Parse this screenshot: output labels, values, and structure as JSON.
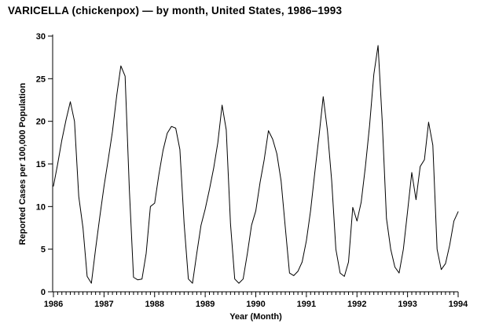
{
  "title": "VARICELLA (chickenpox) — by month, United States, 1986–1993",
  "chart_data": {
    "type": "line",
    "title": "VARICELLA (chickenpox) — by month, United States, 1986–1993",
    "xlabel": "Year (Month)",
    "ylabel": "Reported Cases per 100,000 Population",
    "ylim": [
      0,
      30
    ],
    "y_ticks": [
      0,
      5,
      10,
      15,
      20,
      25,
      30
    ],
    "x_tick_labels": [
      "1986",
      "1987",
      "1988",
      "1989",
      "1990",
      "1991",
      "1992",
      "1993",
      "1994"
    ],
    "x_minor_tick": "monthly",
    "grid": false,
    "legend": "none",
    "line_color": "#000000",
    "background_color": "#ffffff",
    "series": [
      {
        "name": "Reported varicella cases per 100,000 population",
        "monthly_values_by_year": {
          "1986": [
            12.4,
            15.0,
            17.8,
            20.2,
            22.3,
            20.0,
            11.2,
            7.5,
            1.8,
            1.0,
            5.0,
            8.8
          ],
          "1987": [
            12.4,
            15.5,
            18.8,
            23.0,
            26.5,
            25.3,
            12.0,
            1.7,
            1.4,
            1.5,
            4.5,
            10.0
          ],
          "1988": [
            10.4,
            13.7,
            16.6,
            18.6,
            19.4,
            19.2,
            16.7,
            8.0,
            1.5,
            1.0,
            4.5,
            7.8
          ],
          "1989": [
            9.7,
            12.0,
            14.5,
            17.5,
            21.9,
            19.0,
            8.0,
            1.5,
            1.0,
            1.5,
            4.5,
            7.8
          ],
          "1990": [
            9.5,
            12.8,
            15.5,
            18.9,
            17.9,
            16.2,
            13.0,
            7.5,
            2.2,
            1.9,
            2.4,
            3.5
          ],
          "1991": [
            6.0,
            9.5,
            14.0,
            18.3,
            22.9,
            18.9,
            13.0,
            5.0,
            2.2,
            1.8,
            3.5,
            9.9
          ],
          "1992": [
            8.3,
            10.5,
            14.7,
            19.5,
            25.5,
            28.9,
            20.0,
            8.6,
            5.0,
            2.9,
            2.2,
            5.0
          ],
          "1993": [
            9.4,
            14.0,
            10.8,
            14.7,
            15.5,
            19.9,
            17.2,
            5.0,
            2.6,
            3.3,
            5.5,
            8.3
          ],
          "1994": [
            9.4
          ]
        },
        "annual_peaks": {
          "1986": 22.3,
          "1987": 26.5,
          "1988": 19.4,
          "1989": 21.9,
          "1990": 18.9,
          "1991": 22.9,
          "1992": 28.9,
          "1993": 19.9
        }
      }
    ]
  }
}
